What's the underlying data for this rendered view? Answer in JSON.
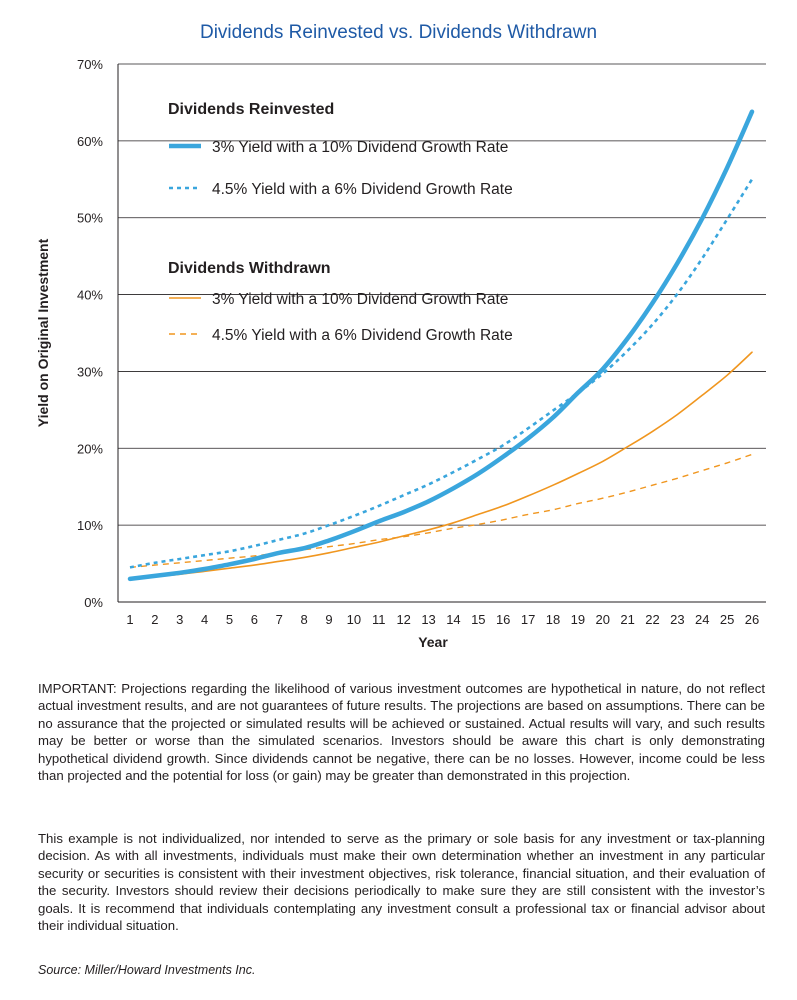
{
  "chart_data": {
    "type": "line",
    "title": "Dividends Reinvested vs. Dividends Withdrawn",
    "xlabel": "Year",
    "ylabel": "Yield on Original Investment",
    "x": [
      1,
      2,
      3,
      4,
      5,
      6,
      7,
      8,
      9,
      10,
      11,
      12,
      13,
      14,
      15,
      16,
      17,
      18,
      19,
      20,
      21,
      22,
      23,
      24,
      25,
      26
    ],
    "xlim": [
      1,
      26
    ],
    "ylim": [
      0,
      70
    ],
    "yticks": [
      0,
      10,
      20,
      30,
      40,
      50,
      60,
      70
    ],
    "ytick_labels": [
      "0%",
      "10%",
      "20%",
      "30%",
      "40%",
      "50%",
      "60%",
      "70%"
    ],
    "grid": true,
    "legend_groups": [
      {
        "heading": "Dividends Reinvested",
        "series": [
          0,
          1
        ]
      },
      {
        "heading": "Dividends Withdrawn",
        "series": [
          2,
          3
        ]
      }
    ],
    "series": [
      {
        "name": "3% Yield with a 10% Dividend Growth Rate",
        "color": "#3aa6dd",
        "style": "solid-thick",
        "values": [
          3.0,
          3.4,
          3.8,
          4.3,
          4.9,
          5.6,
          6.4,
          7.0,
          8.0,
          9.2,
          10.5,
          11.7,
          13.1,
          14.8,
          16.7,
          18.9,
          21.3,
          24.0,
          27.2,
          30.3,
          34.3,
          38.9,
          44.1,
          49.9,
          56.5,
          63.8
        ]
      },
      {
        "name": "4.5% Yield with a 6% Dividend Growth Rate",
        "color": "#3aa6dd",
        "style": "dotted",
        "values": [
          4.5,
          5.1,
          5.6,
          6.1,
          6.6,
          7.3,
          8.1,
          8.9,
          10.0,
          11.2,
          12.5,
          13.9,
          15.3,
          16.9,
          18.6,
          20.4,
          22.6,
          24.9,
          27.2,
          29.7,
          32.7,
          36.1,
          40.1,
          44.7,
          49.8,
          55.0
        ]
      },
      {
        "name": "3% Yield with a 10% Dividend Growth Rate",
        "color": "#f0961f",
        "style": "solid-thin",
        "values": [
          3.0,
          3.3,
          3.6,
          4.0,
          4.4,
          4.8,
          5.3,
          5.8,
          6.4,
          7.1,
          7.8,
          8.6,
          9.4,
          10.3,
          11.4,
          12.5,
          13.8,
          15.2,
          16.7,
          18.3,
          20.2,
          22.2,
          24.4,
          26.9,
          29.5,
          32.5
        ]
      },
      {
        "name": "4.5% Yield with a 6% Dividend Growth Rate",
        "color": "#f0961f",
        "style": "dashed",
        "values": [
          4.5,
          4.8,
          5.1,
          5.4,
          5.7,
          6.0,
          6.4,
          6.8,
          7.2,
          7.6,
          8.1,
          8.5,
          9.0,
          9.6,
          10.1,
          10.7,
          11.4,
          12.0,
          12.8,
          13.5,
          14.3,
          15.2,
          16.1,
          17.1,
          18.1,
          19.2
        ]
      }
    ]
  },
  "disclaimers": {
    "p1": "IMPORTANT: Projections regarding the likelihood of various investment outcomes are hypothetical in nature, do not reflect actual investment results, and are not guarantees of future results. The projections are based on assumptions. There can be no assurance that the projected or simulated results will be achieved or sustained. Actual results will vary, and such results may be better or worse than the simulated scenarios. Investors should be aware this chart is only demonstrating hypothetical dividend growth. Since dividends cannot be negative, there can be no losses. However, income could be less than projected and the potential for loss (or gain) may be greater than demonstrated in this projection.",
    "p2": "This example is not individualized, nor intended to serve as the primary or sole basis for any investment or tax-planning decision. As with all investments, individuals must make their own determination whether an investment in any particular security or securities is consistent with their investment objectives, risk tolerance, financial situation, and their evaluation of the security. Investors should review their decisions periodically to make sure they are still consistent with the investor’s goals. It is recommend that individuals contemplating any investment consult a professional tax or financial advisor about their individual situation."
  },
  "source": "Source: Miller/Howard Investments Inc."
}
